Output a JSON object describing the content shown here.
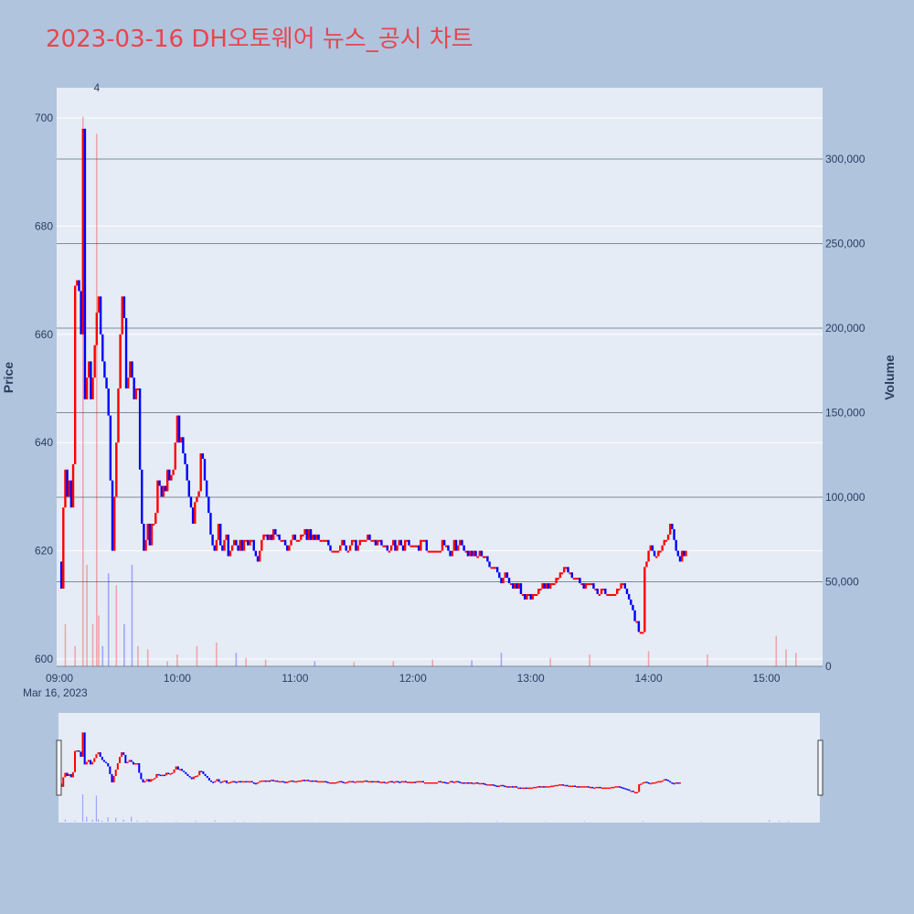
{
  "title": "2023-03-16 DH오토웨어 뉴스_공시 차트",
  "colors": {
    "background": "#b0c4de",
    "plot_bg": "#e5ecf6",
    "up": "#ff0000",
    "down": "#0000ff",
    "title": "#e8454f",
    "grid": "#ffffff",
    "volume_grid": "#7f8b99"
  },
  "chart_data": {
    "type": "candlestick",
    "date_label": "Mar 16, 2023",
    "ylabel": "Price",
    "y2label": "Volume",
    "x_ticks": [
      "09:00",
      "10:00",
      "11:00",
      "12:00",
      "13:00",
      "14:00",
      "15:00"
    ],
    "x_range_minutes": [
      0,
      390
    ],
    "price_ticks": [
      600,
      620,
      640,
      660,
      680,
      700
    ],
    "price_range": [
      599,
      706
    ],
    "volume_ticks": [
      "0",
      "50,000",
      "100,000",
      "150,000",
      "200,000",
      "250,000",
      "300,000"
    ],
    "volume_tick_values": [
      0,
      50000,
      100000,
      150000,
      200000,
      250000,
      300000
    ],
    "volume_range": [
      0,
      300000
    ],
    "annotation": {
      "text": "4",
      "time_min": 19
    },
    "price_path": [
      [
        0,
        618
      ],
      [
        1,
        613
      ],
      [
        2,
        628
      ],
      [
        3,
        635
      ],
      [
        4,
        630
      ],
      [
        5,
        633
      ],
      [
        6,
        628
      ],
      [
        7,
        636
      ],
      [
        8,
        669
      ],
      [
        9,
        670
      ],
      [
        10,
        668
      ],
      [
        11,
        660
      ],
      [
        12,
        698
      ],
      [
        13,
        648
      ],
      [
        14,
        652
      ],
      [
        15,
        655
      ],
      [
        16,
        648
      ],
      [
        17,
        652
      ],
      [
        18,
        658
      ],
      [
        19,
        664
      ],
      [
        20,
        667
      ],
      [
        21,
        660
      ],
      [
        22,
        655
      ],
      [
        23,
        652
      ],
      [
        24,
        650
      ],
      [
        25,
        645
      ],
      [
        26,
        633
      ],
      [
        27,
        620
      ],
      [
        28,
        630
      ],
      [
        29,
        640
      ],
      [
        30,
        650
      ],
      [
        31,
        660
      ],
      [
        32,
        667
      ],
      [
        33,
        663
      ],
      [
        34,
        650
      ],
      [
        35,
        652
      ],
      [
        36,
        655
      ],
      [
        37,
        652
      ],
      [
        38,
        648
      ],
      [
        39,
        650
      ],
      [
        40,
        650
      ],
      [
        41,
        635
      ],
      [
        42,
        625
      ],
      [
        43,
        620
      ],
      [
        44,
        622
      ],
      [
        45,
        625
      ],
      [
        46,
        621
      ],
      [
        47,
        625
      ],
      [
        48,
        625
      ],
      [
        49,
        627
      ],
      [
        50,
        633
      ],
      [
        51,
        632
      ],
      [
        52,
        630
      ],
      [
        53,
        632
      ],
      [
        54,
        631
      ],
      [
        55,
        635
      ],
      [
        56,
        633
      ],
      [
        57,
        634
      ],
      [
        58,
        635
      ],
      [
        59,
        640
      ],
      [
        60,
        645
      ],
      [
        61,
        640
      ],
      [
        62,
        641
      ],
      [
        63,
        638
      ],
      [
        64,
        636
      ],
      [
        65,
        633
      ],
      [
        66,
        630
      ],
      [
        67,
        628
      ],
      [
        68,
        625
      ],
      [
        69,
        629
      ],
      [
        70,
        630
      ],
      [
        71,
        631
      ],
      [
        72,
        638
      ],
      [
        73,
        637
      ],
      [
        74,
        633
      ],
      [
        75,
        630
      ],
      [
        76,
        627
      ],
      [
        77,
        623
      ],
      [
        78,
        621
      ],
      [
        79,
        620
      ],
      [
        80,
        622
      ],
      [
        81,
        625
      ],
      [
        82,
        621
      ],
      [
        83,
        620
      ],
      [
        84,
        622
      ],
      [
        85,
        623
      ],
      [
        86,
        619
      ],
      [
        87,
        620
      ],
      [
        88,
        621
      ],
      [
        89,
        622
      ],
      [
        90,
        621
      ],
      [
        91,
        620
      ],
      [
        92,
        622
      ],
      [
        93,
        620
      ],
      [
        94,
        622
      ],
      [
        95,
        622
      ],
      [
        96,
        621
      ],
      [
        97,
        622
      ],
      [
        98,
        622
      ],
      [
        99,
        620
      ],
      [
        100,
        619
      ],
      [
        101,
        618
      ],
      [
        102,
        620
      ],
      [
        103,
        622
      ],
      [
        104,
        623
      ],
      [
        105,
        623
      ],
      [
        106,
        622
      ],
      [
        107,
        623
      ],
      [
        108,
        622
      ],
      [
        109,
        624
      ],
      [
        110,
        623
      ],
      [
        111,
        623
      ],
      [
        112,
        622
      ],
      [
        113,
        622
      ],
      [
        114,
        622
      ],
      [
        115,
        621
      ],
      [
        116,
        620
      ],
      [
        117,
        621
      ],
      [
        118,
        622
      ],
      [
        119,
        623
      ],
      [
        120,
        622
      ],
      [
        121,
        622
      ],
      [
        122,
        622
      ],
      [
        123,
        623
      ],
      [
        124,
        623
      ],
      [
        125,
        624
      ],
      [
        126,
        622
      ],
      [
        127,
        624
      ],
      [
        128,
        622
      ],
      [
        129,
        623
      ],
      [
        130,
        622
      ],
      [
        131,
        623
      ],
      [
        132,
        622
      ],
      [
        133,
        622
      ],
      [
        134,
        622
      ],
      [
        135,
        622
      ],
      [
        136,
        622
      ],
      [
        137,
        621
      ],
      [
        138,
        620
      ],
      [
        139,
        620
      ],
      [
        140,
        620
      ],
      [
        141,
        620
      ],
      [
        142,
        620
      ],
      [
        143,
        621
      ],
      [
        144,
        622
      ],
      [
        145,
        621
      ],
      [
        146,
        620
      ],
      [
        147,
        620
      ],
      [
        148,
        621
      ],
      [
        149,
        622
      ],
      [
        150,
        622
      ],
      [
        151,
        620
      ],
      [
        152,
        621
      ],
      [
        153,
        622
      ],
      [
        154,
        622
      ],
      [
        155,
        622
      ],
      [
        156,
        622
      ],
      [
        157,
        623
      ],
      [
        158,
        622
      ],
      [
        159,
        622
      ],
      [
        160,
        622
      ],
      [
        161,
        621
      ],
      [
        162,
        622
      ],
      [
        163,
        622
      ],
      [
        164,
        621
      ],
      [
        165,
        621
      ],
      [
        166,
        621
      ],
      [
        167,
        620
      ],
      [
        168,
        620
      ],
      [
        169,
        621
      ],
      [
        170,
        622
      ],
      [
        171,
        620
      ],
      [
        172,
        621
      ],
      [
        173,
        622
      ],
      [
        174,
        621
      ],
      [
        175,
        620
      ],
      [
        176,
        622
      ],
      [
        177,
        622
      ],
      [
        178,
        621
      ],
      [
        179,
        621
      ],
      [
        180,
        621
      ],
      [
        181,
        621
      ],
      [
        182,
        621
      ],
      [
        183,
        620
      ],
      [
        184,
        622
      ],
      [
        185,
        622
      ],
      [
        186,
        622
      ],
      [
        187,
        620
      ],
      [
        188,
        620
      ],
      [
        189,
        620
      ],
      [
        190,
        620
      ],
      [
        191,
        620
      ],
      [
        192,
        620
      ],
      [
        193,
        620
      ],
      [
        194,
        620
      ],
      [
        195,
        622
      ],
      [
        196,
        621
      ],
      [
        197,
        621
      ],
      [
        198,
        620
      ],
      [
        199,
        619
      ],
      [
        200,
        620
      ],
      [
        201,
        622
      ],
      [
        202,
        620
      ],
      [
        203,
        621
      ],
      [
        204,
        622
      ],
      [
        205,
        621
      ],
      [
        206,
        620
      ],
      [
        207,
        620
      ],
      [
        208,
        619
      ],
      [
        209,
        620
      ],
      [
        210,
        619
      ],
      [
        211,
        620
      ],
      [
        212,
        619
      ],
      [
        213,
        619
      ],
      [
        214,
        620
      ],
      [
        215,
        619
      ],
      [
        216,
        619
      ],
      [
        217,
        619
      ],
      [
        218,
        618
      ],
      [
        219,
        617
      ],
      [
        220,
        617
      ],
      [
        221,
        617
      ],
      [
        222,
        617
      ],
      [
        223,
        616
      ],
      [
        224,
        615
      ],
      [
        225,
        614
      ],
      [
        226,
        615
      ],
      [
        227,
        616
      ],
      [
        228,
        615
      ],
      [
        229,
        614
      ],
      [
        230,
        614
      ],
      [
        231,
        613
      ],
      [
        232,
        614
      ],
      [
        233,
        613
      ],
      [
        234,
        614
      ],
      [
        235,
        612
      ],
      [
        236,
        612
      ],
      [
        237,
        611
      ],
      [
        238,
        612
      ],
      [
        239,
        612
      ],
      [
        240,
        611
      ],
      [
        241,
        612
      ],
      [
        242,
        612
      ],
      [
        243,
        612
      ],
      [
        244,
        613
      ],
      [
        245,
        613
      ],
      [
        246,
        614
      ],
      [
        247,
        613
      ],
      [
        248,
        614
      ],
      [
        249,
        613
      ],
      [
        250,
        614
      ],
      [
        251,
        614
      ],
      [
        252,
        614
      ],
      [
        253,
        615
      ],
      [
        254,
        615
      ],
      [
        255,
        616
      ],
      [
        256,
        616
      ],
      [
        257,
        617
      ],
      [
        258,
        617
      ],
      [
        259,
        616
      ],
      [
        260,
        616
      ],
      [
        261,
        615
      ],
      [
        262,
        615
      ],
      [
        263,
        615
      ],
      [
        264,
        615
      ],
      [
        265,
        614
      ],
      [
        266,
        614
      ],
      [
        267,
        613
      ],
      [
        268,
        614
      ],
      [
        269,
        614
      ],
      [
        270,
        614
      ],
      [
        271,
        614
      ],
      [
        272,
        613
      ],
      [
        273,
        613
      ],
      [
        274,
        612
      ],
      [
        275,
        612
      ],
      [
        276,
        613
      ],
      [
        277,
        613
      ],
      [
        278,
        612
      ],
      [
        279,
        612
      ],
      [
        280,
        612
      ],
      [
        281,
        612
      ],
      [
        282,
        612
      ],
      [
        283,
        612
      ],
      [
        284,
        613
      ],
      [
        285,
        613
      ],
      [
        286,
        614
      ],
      [
        287,
        614
      ],
      [
        288,
        613
      ],
      [
        289,
        612
      ],
      [
        290,
        611
      ],
      [
        291,
        610
      ],
      [
        292,
        609
      ],
      [
        293,
        607
      ],
      [
        294,
        607
      ],
      [
        295,
        605
      ],
      [
        296,
        605
      ],
      [
        297,
        605
      ],
      [
        298,
        617
      ],
      [
        299,
        618
      ],
      [
        300,
        620
      ],
      [
        301,
        621
      ],
      [
        302,
        620
      ],
      [
        303,
        619
      ],
      [
        304,
        619
      ],
      [
        305,
        620
      ],
      [
        306,
        620
      ],
      [
        307,
        621
      ],
      [
        308,
        622
      ],
      [
        309,
        622
      ],
      [
        310,
        623
      ],
      [
        311,
        625
      ],
      [
        312,
        624
      ],
      [
        313,
        622
      ],
      [
        314,
        620
      ],
      [
        315,
        619
      ],
      [
        316,
        618
      ],
      [
        317,
        620
      ],
      [
        318,
        619
      ],
      [
        319,
        620
      ]
    ],
    "volume_samples": [
      [
        3,
        25000
      ],
      [
        8,
        12000
      ],
      [
        12,
        330000
      ],
      [
        14,
        60000
      ],
      [
        17,
        25000
      ],
      [
        19,
        315000
      ],
      [
        20,
        30000
      ],
      [
        22,
        12000
      ],
      [
        25,
        55000
      ],
      [
        29,
        48000
      ],
      [
        33,
        25000
      ],
      [
        37,
        60000
      ],
      [
        40,
        12000
      ],
      [
        45,
        10000
      ],
      [
        55,
        3000
      ],
      [
        60,
        7000
      ],
      [
        70,
        12000
      ],
      [
        80,
        14000
      ],
      [
        90,
        8000
      ],
      [
        95,
        5000
      ],
      [
        105,
        4000
      ],
      [
        130,
        3000
      ],
      [
        150,
        2500
      ],
      [
        170,
        3000
      ],
      [
        190,
        4000
      ],
      [
        210,
        3500
      ],
      [
        225,
        8000
      ],
      [
        250,
        5000
      ],
      [
        270,
        7000
      ],
      [
        300,
        9000
      ],
      [
        330,
        7000
      ],
      [
        365,
        18000
      ],
      [
        370,
        10000
      ],
      [
        375,
        8000
      ]
    ]
  }
}
